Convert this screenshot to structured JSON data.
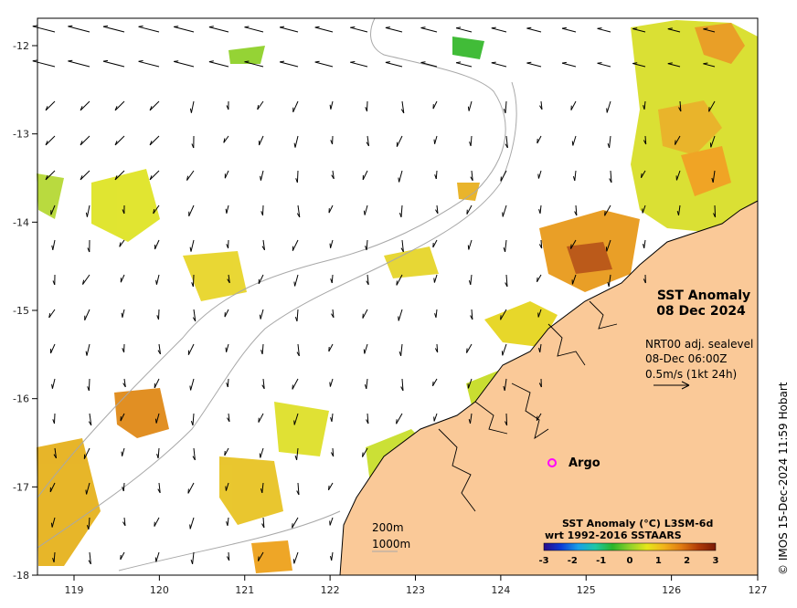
{
  "map": {
    "title_line1": "SST Anomaly",
    "title_line2": "08 Dec 2024",
    "current_source": "NRT00 adj. sealevel",
    "current_time": "08-Dec 06:00Z",
    "current_scale": "0.5m/s (1kt 24h)",
    "argo_label": "Argo",
    "contour_200": "200m",
    "contour_1000": "1000m",
    "colorbar_title_line1": "SST Anomaly (°C) L3SM-6d",
    "colorbar_title_line2": "wrt 1992-2016 SSTAARS",
    "colorbar_ticks": [
      "-3",
      "-2",
      "-1",
      "0",
      "1",
      "2",
      "3"
    ],
    "colorbar_colors": [
      "#2a0a8a",
      "#0b3bd6",
      "#1aa0e8",
      "#1fc7a6",
      "#2ab52a",
      "#8fd12a",
      "#e6e619",
      "#f2b31a",
      "#e07a12",
      "#b03a08",
      "#7a1a05"
    ],
    "credit": "© IMOS 15-Dec-2024 11:59 Hobart",
    "lon_ticks": [
      "119",
      "120",
      "121",
      "122",
      "123",
      "124",
      "125",
      "126",
      "127"
    ],
    "lat_ticks": [
      "-12",
      "-13",
      "-14",
      "-15",
      "-16",
      "-17",
      "-18"
    ],
    "land_color": "#fac998",
    "coast_color": "#000000",
    "argo_color": "#ff00ff"
  }
}
